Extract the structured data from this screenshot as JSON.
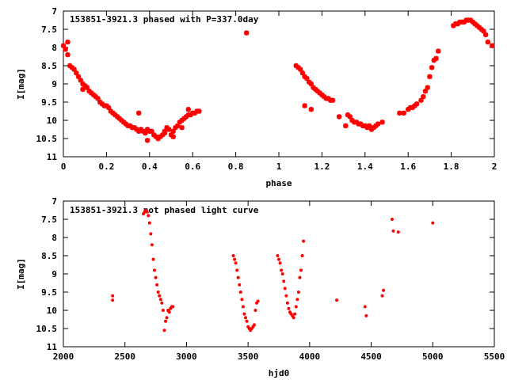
{
  "chart_data": [
    {
      "type": "scatter",
      "title": "153851-3921.3 phased with P=337.0day",
      "xlabel": "phase",
      "ylabel": "I[mag]",
      "xlim": [
        0,
        2
      ],
      "ylim": [
        7,
        11
      ],
      "y_inverted": true,
      "x_ticks": [
        "0",
        "0.2",
        "0.4",
        "0.6",
        "0.8",
        "1",
        "1.2",
        "1.4",
        "1.6",
        "1.8",
        "2"
      ],
      "y_ticks": [
        "7",
        "7.5",
        "8",
        "8.5",
        "9",
        "9.5",
        "10",
        "10.5",
        "11"
      ],
      "marker": "star",
      "color": "#ff0000",
      "grid": false,
      "series": [
        {
          "x": [
            0.0,
            0.01,
            0.02,
            0.03,
            0.04,
            0.05,
            0.06,
            0.07,
            0.08,
            0.09,
            0.1,
            0.11,
            0.12,
            0.13,
            0.14,
            0.15,
            0.16,
            0.17,
            0.18,
            0.19,
            0.2,
            0.21,
            0.22,
            0.23,
            0.24,
            0.25,
            0.26,
            0.27,
            0.28,
            0.29,
            0.3,
            0.31,
            0.32,
            0.33,
            0.34,
            0.35,
            0.36,
            0.37,
            0.38,
            0.39,
            0.4,
            0.41,
            0.42,
            0.43,
            0.44,
            0.45,
            0.46,
            0.47,
            0.48,
            0.49,
            0.5,
            0.51,
            0.52,
            0.53,
            0.54,
            0.55,
            0.56,
            0.57,
            0.58,
            0.59,
            0.6,
            0.61,
            0.62,
            0.63,
            0.02,
            0.09,
            0.35,
            0.39,
            0.44,
            0.47,
            0.51,
            0.55,
            0.58,
            0.85,
            1.08,
            1.09,
            1.1,
            1.11,
            1.12,
            1.13,
            1.14,
            1.15,
            1.16,
            1.17,
            1.18,
            1.19,
            1.2,
            1.21,
            1.22,
            1.23,
            1.24,
            1.25,
            1.12,
            1.15,
            1.28,
            1.31,
            1.32,
            1.33,
            1.34,
            1.35,
            1.36,
            1.37,
            1.38,
            1.39,
            1.4,
            1.41,
            1.42,
            1.43,
            1.44,
            1.45,
            1.46,
            1.48,
            1.56,
            1.58,
            1.6,
            1.61,
            1.62,
            1.63,
            1.64,
            1.66,
            1.67,
            1.68,
            1.69,
            1.7,
            1.71,
            1.72,
            1.73,
            1.74,
            1.81,
            1.82,
            1.83,
            1.84,
            1.85,
            1.86,
            1.87,
            1.88,
            1.89,
            1.9,
            1.91,
            1.92,
            1.93,
            1.94,
            1.95,
            1.96,
            1.97,
            1.99
          ],
          "y": [
            7.95,
            8.05,
            8.2,
            8.5,
            8.55,
            8.6,
            8.7,
            8.8,
            8.9,
            9.0,
            9.05,
            9.1,
            9.2,
            9.25,
            9.3,
            9.35,
            9.4,
            9.5,
            9.55,
            9.6,
            9.6,
            9.65,
            9.75,
            9.8,
            9.85,
            9.9,
            9.95,
            10.0,
            10.05,
            10.1,
            10.15,
            10.15,
            10.2,
            10.2,
            10.25,
            10.3,
            10.25,
            10.3,
            10.35,
            10.25,
            10.3,
            10.3,
            10.4,
            10.45,
            10.5,
            10.45,
            10.4,
            10.3,
            10.2,
            10.25,
            10.4,
            10.3,
            10.2,
            10.15,
            10.05,
            10.0,
            9.95,
            9.9,
            9.85,
            9.85,
            9.8,
            9.8,
            9.75,
            9.75,
            7.85,
            9.15,
            9.8,
            10.55,
            10.5,
            10.35,
            10.45,
            10.2,
            9.7,
            7.6,
            8.5,
            8.55,
            8.6,
            8.7,
            8.8,
            8.85,
            8.95,
            9.0,
            9.1,
            9.15,
            9.2,
            9.25,
            9.3,
            9.35,
            9.4,
            9.4,
            9.45,
            9.45,
            9.6,
            9.7,
            9.9,
            10.15,
            9.85,
            9.9,
            10.0,
            10.05,
            10.05,
            10.1,
            10.1,
            10.15,
            10.15,
            10.2,
            10.15,
            10.25,
            10.2,
            10.15,
            10.1,
            10.05,
            9.8,
            9.8,
            9.7,
            9.65,
            9.65,
            9.6,
            9.55,
            9.45,
            9.35,
            9.2,
            9.1,
            8.8,
            8.55,
            8.35,
            8.3,
            8.1,
            7.4,
            7.35,
            7.35,
            7.3,
            7.3,
            7.3,
            7.25,
            7.25,
            7.25,
            7.3,
            7.35,
            7.4,
            7.45,
            7.5,
            7.55,
            7.65,
            7.85,
            7.95
          ]
        }
      ]
    },
    {
      "type": "scatter",
      "title": "153851-3921.3 not phased light curve",
      "xlabel": "hjd0",
      "ylabel": "I[mag]",
      "xlim": [
        2000,
        5500
      ],
      "ylim": [
        7,
        11
      ],
      "y_inverted": true,
      "x_ticks": [
        "2000",
        "2500",
        "3000",
        "3500",
        "4000",
        "4500",
        "5000",
        "5500"
      ],
      "y_ticks": [
        "7",
        "7.5",
        "8",
        "8.5",
        "9",
        "9.5",
        "10",
        "10.5",
        "11"
      ],
      "marker": "dot",
      "color": "#ff0000",
      "grid": false,
      "series": [
        {
          "x": [
            2400,
            2400,
            2650,
            2660,
            2670,
            2680,
            2690,
            2700,
            2710,
            2720,
            2730,
            2740,
            2750,
            2760,
            2770,
            2780,
            2790,
            2800,
            2810,
            2820,
            2830,
            2840,
            2850,
            2860,
            2870,
            2880,
            2890,
            3380,
            3390,
            3400,
            3410,
            3420,
            3430,
            3440,
            3450,
            3460,
            3470,
            3480,
            3490,
            3500,
            3510,
            3520,
            3530,
            3540,
            3550,
            3560,
            3570,
            3580,
            3740,
            3750,
            3760,
            3770,
            3780,
            3790,
            3800,
            3810,
            3820,
            3830,
            3840,
            3850,
            3860,
            3870,
            3880,
            3890,
            3900,
            3910,
            3920,
            3930,
            3940,
            3950,
            4220,
            4450,
            4460,
            4590,
            4600,
            4670,
            4680,
            4720,
            5000
          ],
          "y": [
            9.6,
            9.72,
            7.35,
            7.3,
            7.25,
            7.3,
            7.4,
            7.6,
            7.9,
            8.2,
            8.6,
            8.9,
            9.1,
            9.3,
            9.5,
            9.6,
            9.7,
            9.8,
            10.0,
            10.55,
            10.3,
            10.2,
            10.0,
            10.05,
            9.95,
            9.9,
            9.9,
            8.5,
            8.6,
            8.7,
            8.9,
            9.1,
            9.3,
            9.5,
            9.7,
            9.9,
            10.1,
            10.2,
            10.3,
            10.45,
            10.5,
            10.55,
            10.5,
            10.45,
            10.4,
            10.0,
            9.8,
            9.75,
            8.5,
            8.6,
            8.7,
            8.9,
            9.0,
            9.2,
            9.4,
            9.6,
            9.8,
            9.95,
            10.05,
            10.1,
            10.15,
            10.2,
            10.1,
            9.9,
            9.7,
            9.5,
            9.1,
            8.9,
            8.5,
            8.1,
            9.72,
            9.9,
            10.15,
            9.6,
            9.45,
            7.5,
            7.82,
            7.85,
            7.6
          ]
        }
      ]
    }
  ]
}
